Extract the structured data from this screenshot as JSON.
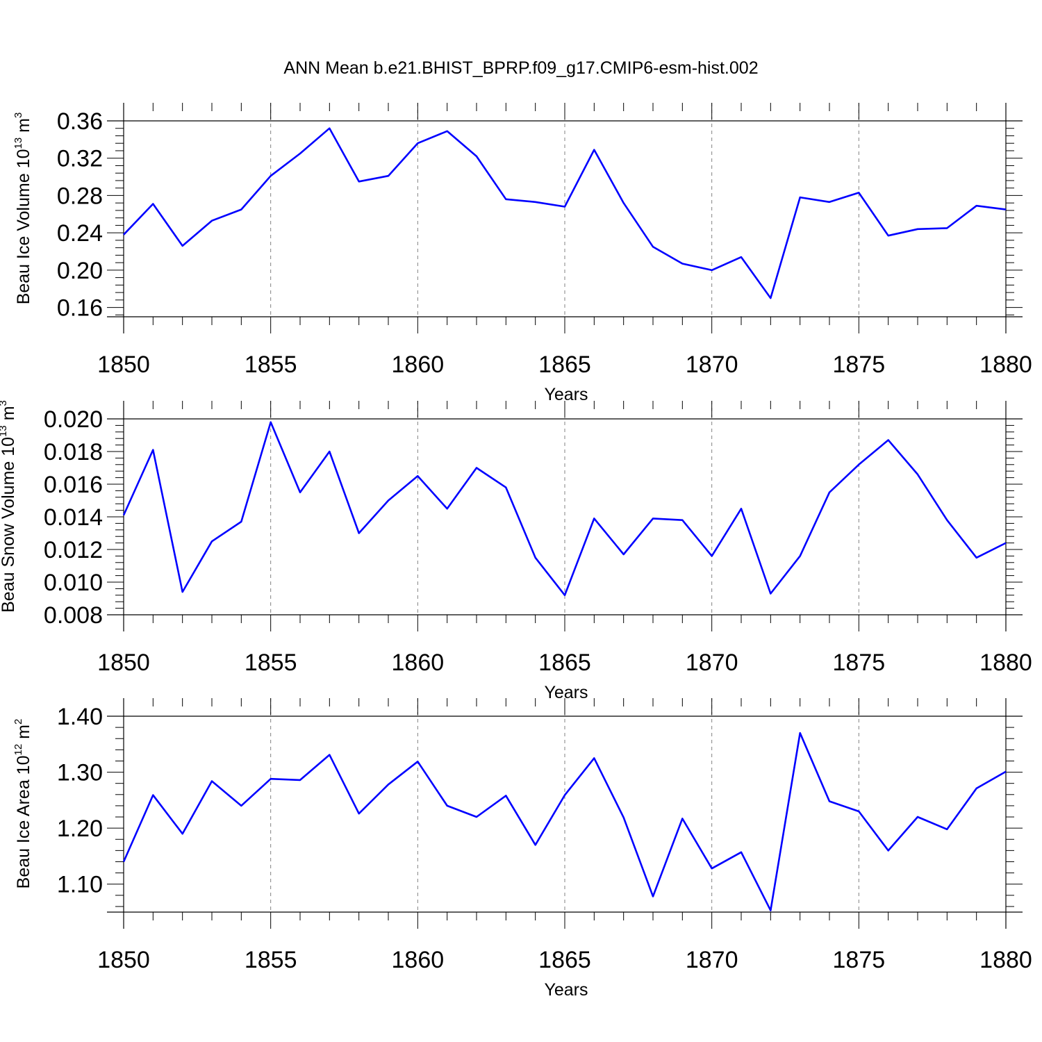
{
  "title": "ANN Mean b.e21.BHIST_BPRP.f09_g17.CMIP6-esm-hist.002",
  "colors": {
    "line": "#0000ff",
    "grid": "#808080",
    "axis": "#000000"
  },
  "chart_data": [
    {
      "type": "line",
      "ylabel": "Beau Ice Volume",
      "ylabel_unit_base": "10",
      "ylabel_unit_exp": "13",
      "ylabel_unit_suffix": "m",
      "ylabel_unit_suffix_exp": "3",
      "xlabel": "Years",
      "xlim": [
        1850,
        1880
      ],
      "ylim": [
        0.15,
        0.36
      ],
      "x_ticks": [
        1850,
        1855,
        1860,
        1865,
        1870,
        1875,
        1880
      ],
      "y_ticks": [
        "0.16",
        "0.20",
        "0.24",
        "0.28",
        "0.32",
        "0.36"
      ],
      "grid": "vertical dashed at major x ticks",
      "x": [
        1850,
        1851,
        1852,
        1853,
        1854,
        1855,
        1856,
        1857,
        1858,
        1859,
        1860,
        1861,
        1862,
        1863,
        1864,
        1865,
        1866,
        1867,
        1868,
        1869,
        1870,
        1871,
        1872,
        1873,
        1874,
        1875,
        1876,
        1877,
        1878,
        1879,
        1880
      ],
      "values": [
        0.238,
        0.271,
        0.226,
        0.253,
        0.265,
        0.301,
        0.325,
        0.352,
        0.295,
        0.301,
        0.336,
        0.349,
        0.322,
        0.276,
        0.273,
        0.268,
        0.329,
        0.272,
        0.225,
        0.207,
        0.2,
        0.214,
        0.17,
        0.278,
        0.273,
        0.283,
        0.237,
        0.244,
        0.245,
        0.269,
        0.265
      ]
    },
    {
      "type": "line",
      "ylabel": "Beau Snow Volume",
      "ylabel_unit_base": "10",
      "ylabel_unit_exp": "13",
      "ylabel_unit_suffix": "m",
      "ylabel_unit_suffix_exp": "3",
      "xlabel": "Years",
      "xlim": [
        1850,
        1880
      ],
      "ylim": [
        0.008,
        0.02
      ],
      "x_ticks": [
        1850,
        1855,
        1860,
        1865,
        1870,
        1875,
        1880
      ],
      "y_ticks": [
        "0.008",
        "0.010",
        "0.012",
        "0.014",
        "0.016",
        "0.018",
        "0.020"
      ],
      "grid": "vertical dashed at major x ticks",
      "x": [
        1850,
        1851,
        1852,
        1853,
        1854,
        1855,
        1856,
        1857,
        1858,
        1859,
        1860,
        1861,
        1862,
        1863,
        1864,
        1865,
        1866,
        1867,
        1868,
        1869,
        1870,
        1871,
        1872,
        1873,
        1874,
        1875,
        1876,
        1877,
        1878,
        1879,
        1880
      ],
      "values": [
        0.0141,
        0.0181,
        0.0094,
        0.0125,
        0.0137,
        0.0198,
        0.0155,
        0.018,
        0.013,
        0.015,
        0.0165,
        0.0145,
        0.017,
        0.0158,
        0.0115,
        0.0092,
        0.0139,
        0.0117,
        0.0139,
        0.0138,
        0.0116,
        0.0145,
        0.0093,
        0.0116,
        0.0155,
        0.0172,
        0.0187,
        0.0166,
        0.0138,
        0.0115,
        0.0124
      ]
    },
    {
      "type": "line",
      "ylabel": "Beau Ice Area",
      "ylabel_unit_base": "10",
      "ylabel_unit_exp": "12",
      "ylabel_unit_suffix": "m",
      "ylabel_unit_suffix_exp": "2",
      "xlabel": "Years",
      "xlim": [
        1850,
        1880
      ],
      "ylim": [
        1.05,
        1.4
      ],
      "x_ticks": [
        1850,
        1855,
        1860,
        1865,
        1870,
        1875,
        1880
      ],
      "y_ticks": [
        "1.10",
        "1.20",
        "1.30",
        "1.40"
      ],
      "grid": "vertical dashed at major x ticks",
      "x": [
        1850,
        1851,
        1852,
        1853,
        1854,
        1855,
        1856,
        1857,
        1858,
        1859,
        1860,
        1861,
        1862,
        1863,
        1864,
        1865,
        1866,
        1867,
        1868,
        1869,
        1870,
        1871,
        1872,
        1873,
        1874,
        1875,
        1876,
        1877,
        1878,
        1879,
        1880
      ],
      "values": [
        1.14,
        1.259,
        1.19,
        1.284,
        1.24,
        1.288,
        1.286,
        1.331,
        1.226,
        1.278,
        1.319,
        1.24,
        1.22,
        1.258,
        1.17,
        1.259,
        1.325,
        1.219,
        1.078,
        1.217,
        1.128,
        1.157,
        1.053,
        1.37,
        1.248,
        1.23,
        1.16,
        1.22,
        1.198,
        1.271,
        1.301
      ]
    }
  ]
}
